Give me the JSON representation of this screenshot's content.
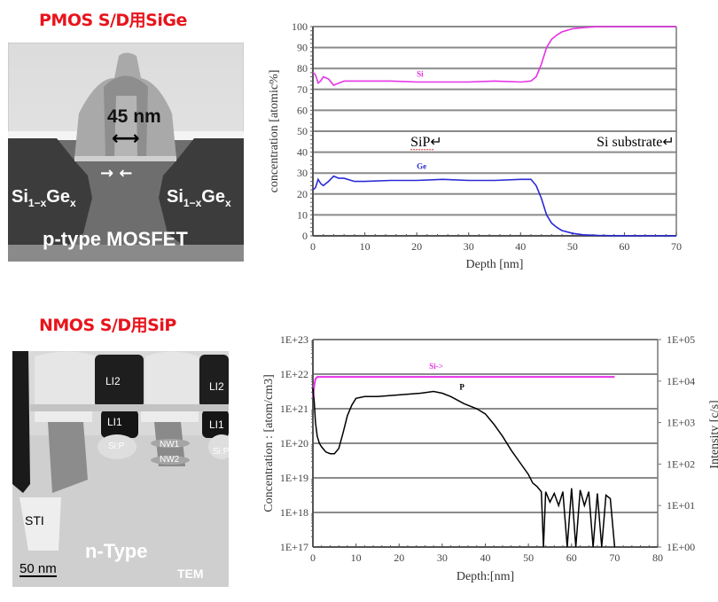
{
  "panels": {
    "pmos_title": "PMOS S/D用SiGe",
    "nmos_title": "NMOS S/D用SiP"
  },
  "pmos_image": {
    "gate_width_label": "45 nm",
    "left_sd_label": "Si",
    "left_sd_sub": "1−x",
    "left_sd_label2": "Ge",
    "left_sd_sub2": "x",
    "right_sd_label": "Si",
    "right_sd_sub": "1−x",
    "right_sd_label2": "Ge",
    "right_sd_sub2": "x",
    "device_label": "p-type MOSFET"
  },
  "nmos_image": {
    "li2_left": "LI2",
    "li1_left": "LI1",
    "li2_right": "LI2",
    "li1_right": "LI1",
    "sip_left": "Si:P",
    "sip_right": "Si:P",
    "nw1": "NW1",
    "nw2": "NW2",
    "sti": "STI",
    "type_label": "n-Type",
    "scale_bar": "50 nm",
    "tem_label": "TEM"
  },
  "chart_data": [
    {
      "type": "line",
      "title": "",
      "xlabel": "Depth  [nm]",
      "ylabel": "concentration [atomic%]",
      "xlim": [
        0,
        70
      ],
      "ylim": [
        0,
        100
      ],
      "x_ticks": [
        "0",
        "10",
        "20",
        "30",
        "40",
        "50",
        "60",
        "70"
      ],
      "y_ticks": [
        "0",
        "10",
        "20",
        "30",
        "40",
        "50",
        "60",
        "70",
        "80",
        "90",
        "100"
      ],
      "grid": "horizontal",
      "annotations": [
        {
          "text": "SiP↵",
          "x": 20,
          "y": 45
        },
        {
          "text": "Si substrate↵",
          "x": 62,
          "y": 45
        }
      ],
      "series": [
        {
          "name": "Si",
          "color": "#e632e6",
          "label_at": [
            20,
            76
          ],
          "x": [
            0,
            0.5,
            1,
            1.5,
            2,
            3,
            4,
            5,
            6,
            8,
            10,
            15,
            20,
            25,
            30,
            35,
            40,
            42,
            43,
            44,
            45,
            46,
            47,
            48,
            50,
            52,
            55,
            60,
            65,
            70
          ],
          "y": [
            78,
            77,
            73,
            74,
            76,
            75,
            72,
            73,
            74,
            74,
            74,
            74,
            73.5,
            73.5,
            73.5,
            74,
            73.5,
            74,
            76,
            82,
            90,
            94,
            96,
            97.5,
            99,
            99.5,
            100,
            100,
            100,
            100
          ]
        },
        {
          "name": "Ge",
          "color": "#2a2ad6",
          "label_at": [
            20,
            32
          ],
          "x": [
            0,
            0.5,
            1,
            1.5,
            2,
            3,
            4,
            5,
            6,
            8,
            10,
            15,
            20,
            25,
            30,
            35,
            40,
            42,
            43,
            44,
            45,
            46,
            47,
            48,
            50,
            52,
            55,
            60,
            65,
            70
          ],
          "y": [
            22,
            23,
            27,
            25,
            24,
            26,
            28.5,
            27.5,
            27.5,
            26,
            26,
            26.5,
            26.5,
            27,
            26.5,
            26.5,
            27,
            27,
            24,
            18,
            10,
            6,
            4,
            2.5,
            1.2,
            0.5,
            0.2,
            0,
            0,
            0
          ]
        }
      ]
    },
    {
      "type": "line",
      "title": "",
      "xlabel": "Depth:[nm]",
      "ylabel": "Concentration : [atom/cm3]",
      "y2label": "Intensity [c/s]",
      "xlim": [
        0,
        80
      ],
      "ylim_log10": [
        17,
        23
      ],
      "y2lim_log10": [
        0,
        5
      ],
      "x_ticks": [
        "0",
        "10",
        "20",
        "30",
        "40",
        "50",
        "60",
        "70",
        "80"
      ],
      "y_ticks": [
        "1E+17",
        "1E+18",
        "1E+19",
        "1E+20",
        "1E+21",
        "1E+22",
        "1E+23"
      ],
      "y2_ticks": [
        "1E+00",
        "1E+01",
        "1E+02",
        "1E+03",
        "1E+04",
        "1E+05"
      ],
      "grid": "horizontal",
      "series": [
        {
          "name": "Si->",
          "axis": "right",
          "color": "#e632e6",
          "label_at": [
            27,
            4.3
          ],
          "x": [
            0,
            0.3,
            0.6,
            1,
            2,
            5,
            10,
            20,
            30,
            40,
            50,
            60,
            70
          ],
          "y_log10": [
            3.6,
            3.9,
            4.05,
            4.1,
            4.1,
            4.1,
            4.1,
            4.1,
            4.1,
            4.1,
            4.1,
            4.1,
            4.1
          ]
        },
        {
          "name": "P",
          "axis": "left",
          "color": "#000000",
          "label_at": [
            34,
            21.55
          ],
          "x": [
            0,
            0.3,
            0.6,
            1,
            1.5,
            2,
            3,
            4,
            5,
            6,
            7,
            8,
            9,
            10,
            12,
            15,
            20,
            25,
            28,
            30,
            32,
            35,
            38,
            40,
            42,
            44,
            46,
            48,
            50,
            51,
            52,
            53,
            53.5,
            54,
            55,
            56,
            57,
            58,
            59,
            60,
            61,
            62,
            63,
            64,
            65,
            66,
            67,
            68,
            69,
            70
          ],
          "y_log10": [
            21.6,
            21.2,
            20.6,
            20.2,
            20.0,
            19.9,
            19.75,
            19.7,
            19.7,
            19.85,
            20.3,
            20.8,
            21.1,
            21.3,
            21.35,
            21.35,
            21.4,
            21.45,
            21.5,
            21.45,
            21.35,
            21.15,
            21.0,
            20.85,
            20.55,
            20.2,
            19.8,
            19.45,
            19.1,
            18.85,
            18.75,
            18.6,
            17.0,
            18.6,
            18.3,
            18.55,
            18.2,
            18.6,
            17.0,
            18.7,
            17.0,
            18.65,
            18.2,
            18.6,
            17.0,
            18.55,
            17.0,
            18.5,
            18.4,
            17.0
          ]
        }
      ]
    }
  ]
}
